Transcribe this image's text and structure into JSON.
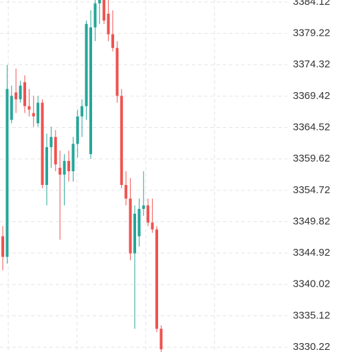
{
  "chart_data": {
    "type": "candlestick",
    "open": [
      3347.54,
      3344.33,
      3365.72,
      3370.0,
      3368.93,
      3371.61,
      3367.86,
      3366.79,
      3365.19,
      3368.4,
      3355.56,
      3361.45,
      3363.05,
      3358.24,
      3357.17,
      3359.31,
      3357.7,
      3361.98,
      3366.26,
      3367.86,
      3360.38,
      3380.16,
      3383.91,
      3384.44,
      3382.3,
      3379.09,
      3376.95,
      3369.47,
      3355.56,
      3353.43,
      3344.87,
      3347.54,
      3351.82,
      3352.36,
      3349.68,
      3348.61,
      3333.1
    ],
    "high": [
      3349.15,
      3374.28,
      3371.07,
      3373.74,
      3371.82,
      3372.68,
      3370.54,
      3369.47,
      3369.47,
      3368.93,
      3363.58,
      3364.65,
      3364.12,
      3360.91,
      3360.38,
      3360.91,
      3363.05,
      3367.33,
      3368.93,
      3381.23,
      3382.84,
      3384.44,
      3385.51,
      3385.51,
      3384.44,
      3382.84,
      3378.02,
      3370.54,
      3357.7,
      3356.63,
      3352.36,
      3353.43,
      3357.7,
      3353.43,
      3353.43,
      3349.15,
      3333.64
    ],
    "low": [
      3342.2,
      3343.26,
      3365.19,
      3366.79,
      3368.4,
      3366.79,
      3366.26,
      3364.65,
      3364.65,
      3355.03,
      3352.36,
      3358.24,
      3357.7,
      3347.01,
      3352.36,
      3356.1,
      3356.1,
      3359.84,
      3363.05,
      3365.72,
      3359.63,
      3378.02,
      3380.7,
      3380.7,
      3378.02,
      3376.42,
      3368.4,
      3355.03,
      3352.36,
      3343.8,
      3333.1,
      3345.94,
      3350.75,
      3349.15,
      3348.08,
      3332.57,
      3328.83
    ],
    "close": [
      3344.33,
      3370.54,
      3369.47,
      3368.93,
      3371.07,
      3367.86,
      3367.33,
      3366.26,
      3368.4,
      3355.56,
      3361.45,
      3363.05,
      3358.77,
      3357.17,
      3359.31,
      3357.7,
      3361.98,
      3366.26,
      3367.86,
      3380.7,
      3380.16,
      3383.91,
      3384.44,
      3381.23,
      3379.09,
      3376.95,
      3369.47,
      3355.56,
      3353.43,
      3344.87,
      3351.07,
      3351.82,
      3352.36,
      3349.68,
      3348.61,
      3333.1,
      3329.9
    ],
    "up_color": "#26a69a",
    "down_color": "#ef5350",
    "ylim": [
      3329.47,
      3384.44
    ],
    "yticks": [
      3384.12,
      3379.22,
      3374.32,
      3369.42,
      3364.52,
      3359.62,
      3354.72,
      3349.82,
      3344.92,
      3340.02,
      3335.12,
      3330.22
    ],
    "grid": true
  }
}
